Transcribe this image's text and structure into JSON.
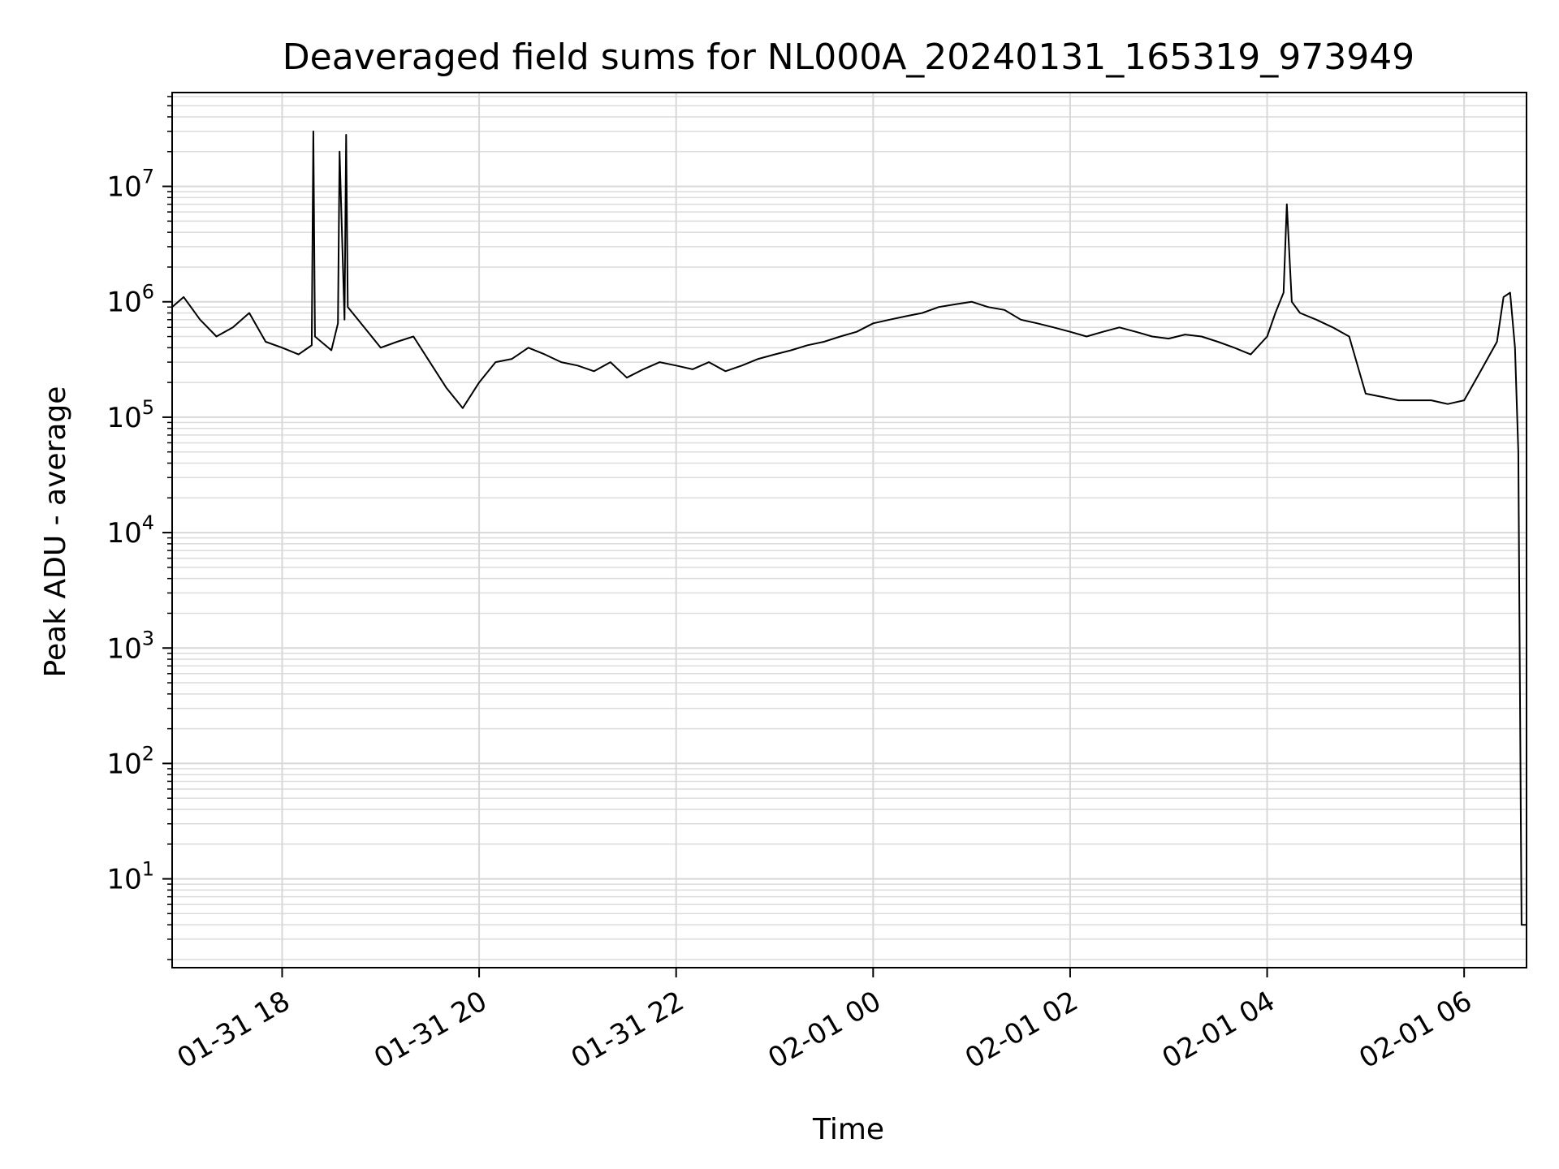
{
  "chart_data": {
    "type": "line",
    "title": "Deaveraged field sums for NL000A_20240131_165319_973949",
    "xlabel": "Time",
    "ylabel": "Peak ADU - average",
    "xlim": [
      "2024-01-31 16:53",
      "2024-02-01 06:38"
    ],
    "ylim": [
      1.7,
      65000000
    ],
    "yscale": "log",
    "grid": true,
    "line_color": "#000000",
    "x_ticks": [
      {
        "value": "2024-01-31 18:00",
        "label": "01-31 18"
      },
      {
        "value": "2024-01-31 20:00",
        "label": "01-31 20"
      },
      {
        "value": "2024-01-31 22:00",
        "label": "01-31 22"
      },
      {
        "value": "2024-02-01 00:00",
        "label": "02-01 00"
      },
      {
        "value": "2024-02-01 02:00",
        "label": "02-01 02"
      },
      {
        "value": "2024-02-01 04:00",
        "label": "02-01 04"
      },
      {
        "value": "2024-02-01 06:00",
        "label": "02-01 06"
      }
    ],
    "y_ticks": [
      {
        "value": 10,
        "base": "10",
        "exp": "1"
      },
      {
        "value": 100,
        "base": "10",
        "exp": "2"
      },
      {
        "value": 1000,
        "base": "10",
        "exp": "3"
      },
      {
        "value": 10000,
        "base": "10",
        "exp": "4"
      },
      {
        "value": 100000,
        "base": "10",
        "exp": "5"
      },
      {
        "value": 1000000,
        "base": "10",
        "exp": "6"
      },
      {
        "value": 10000000,
        "base": "10",
        "exp": "7"
      }
    ],
    "series": [
      {
        "x": [
          "2024-01-31 16:53",
          "2024-01-31 17:00",
          "2024-01-31 17:10",
          "2024-01-31 17:20",
          "2024-01-31 17:30",
          "2024-01-31 17:40",
          "2024-01-31 17:50",
          "2024-01-31 18:00",
          "2024-01-31 18:10",
          "2024-01-31 18:18",
          "2024-01-31 18:19",
          "2024-01-31 18:20",
          "2024-01-31 18:30",
          "2024-01-31 18:34",
          "2024-01-31 18:35",
          "2024-01-31 18:38",
          "2024-01-31 18:39",
          "2024-01-31 18:40",
          "2024-01-31 18:50",
          "2024-01-31 19:00",
          "2024-01-31 19:10",
          "2024-01-31 19:20",
          "2024-01-31 19:30",
          "2024-01-31 19:40",
          "2024-01-31 19:50",
          "2024-01-31 20:00",
          "2024-01-31 20:10",
          "2024-01-31 20:20",
          "2024-01-31 20:30",
          "2024-01-31 20:40",
          "2024-01-31 20:50",
          "2024-01-31 21:00",
          "2024-01-31 21:10",
          "2024-01-31 21:20",
          "2024-01-31 21:30",
          "2024-01-31 21:40",
          "2024-01-31 21:50",
          "2024-01-31 22:00",
          "2024-01-31 22:10",
          "2024-01-31 22:20",
          "2024-01-31 22:30",
          "2024-01-31 22:40",
          "2024-01-31 22:50",
          "2024-01-31 23:00",
          "2024-01-31 23:10",
          "2024-01-31 23:20",
          "2024-01-31 23:30",
          "2024-01-31 23:40",
          "2024-01-31 23:50",
          "2024-02-01 00:00",
          "2024-02-01 00:10",
          "2024-02-01 00:20",
          "2024-02-01 00:30",
          "2024-02-01 00:40",
          "2024-02-01 00:50",
          "2024-02-01 01:00",
          "2024-02-01 01:10",
          "2024-02-01 01:20",
          "2024-02-01 01:30",
          "2024-02-01 01:40",
          "2024-02-01 01:50",
          "2024-02-01 02:00",
          "2024-02-01 02:10",
          "2024-02-01 02:20",
          "2024-02-01 02:30",
          "2024-02-01 02:40",
          "2024-02-01 02:50",
          "2024-02-01 03:00",
          "2024-02-01 03:10",
          "2024-02-01 03:20",
          "2024-02-01 03:30",
          "2024-02-01 03:40",
          "2024-02-01 03:50",
          "2024-02-01 04:00",
          "2024-02-01 04:05",
          "2024-02-01 04:10",
          "2024-02-01 04:12",
          "2024-02-01 04:15",
          "2024-02-01 04:20",
          "2024-02-01 04:30",
          "2024-02-01 04:40",
          "2024-02-01 04:50",
          "2024-02-01 05:00",
          "2024-02-01 05:10",
          "2024-02-01 05:20",
          "2024-02-01 05:30",
          "2024-02-01 05:40",
          "2024-02-01 05:50",
          "2024-02-01 06:00",
          "2024-02-01 06:10",
          "2024-02-01 06:20",
          "2024-02-01 06:24",
          "2024-02-01 06:28",
          "2024-02-01 06:31",
          "2024-02-01 06:33",
          "2024-02-01 06:35",
          "2024-02-01 06:38"
        ],
        "y": [
          900000,
          1100000,
          700000,
          500000,
          600000,
          800000,
          450000,
          400000,
          350000,
          420000,
          30000000,
          500000,
          380000,
          650000,
          20000000,
          700000,
          28000000,
          900000,
          600000,
          400000,
          450000,
          500000,
          300000,
          180000,
          120000,
          200000,
          300000,
          320000,
          400000,
          350000,
          300000,
          280000,
          250000,
          300000,
          220000,
          260000,
          300000,
          280000,
          260000,
          300000,
          250000,
          280000,
          320000,
          350000,
          380000,
          420000,
          450000,
          500000,
          550000,
          650000,
          700000,
          750000,
          800000,
          900000,
          950000,
          1000000,
          900000,
          850000,
          700000,
          650000,
          600000,
          550000,
          500000,
          550000,
          600000,
          550000,
          500000,
          480000,
          520000,
          500000,
          450000,
          400000,
          350000,
          500000,
          800000,
          1200000,
          7000000,
          1000000,
          800000,
          700000,
          600000,
          500000,
          160000,
          150000,
          140000,
          140000,
          140000,
          130000,
          140000,
          250000,
          450000,
          1100000,
          1200000,
          400000,
          50000,
          4,
          4
        ]
      }
    ]
  }
}
